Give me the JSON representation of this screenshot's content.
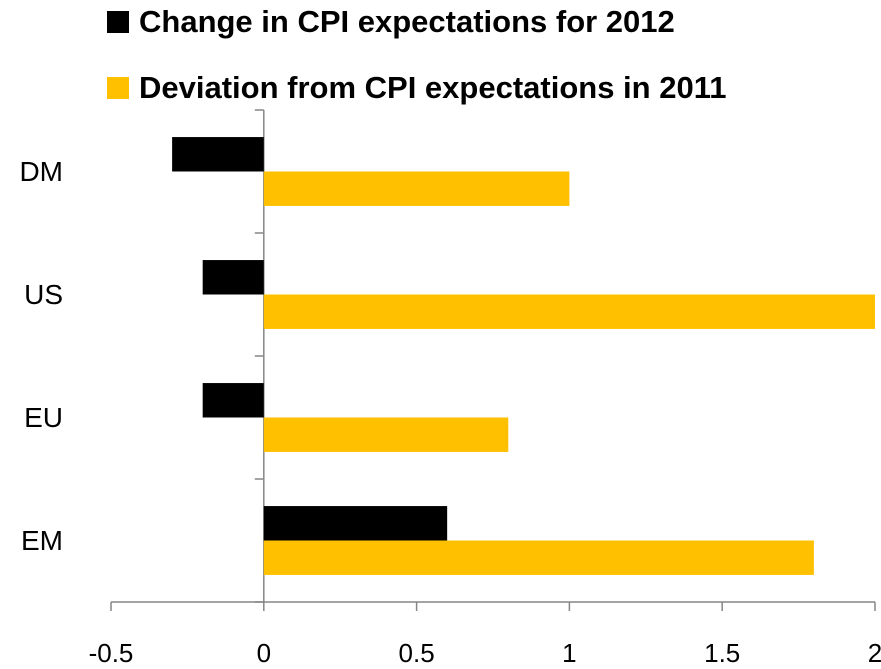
{
  "chart_data": {
    "type": "bar",
    "orientation": "horizontal",
    "categories": [
      "DM",
      "US",
      "EU",
      "EM"
    ],
    "series": [
      {
        "name": "Change in CPI expectations for 2012",
        "color": "#000000",
        "values": [
          -0.3,
          -0.2,
          -0.2,
          0.6
        ]
      },
      {
        "name": "Deviation from CPI expectations in 2011",
        "color": "#ffc000",
        "values": [
          1.0,
          2.0,
          0.8,
          1.8
        ]
      }
    ],
    "xlim": [
      -0.5,
      2
    ],
    "xticks": [
      -0.5,
      0,
      0.5,
      1,
      1.5,
      2
    ],
    "grid": false,
    "legend": "top"
  }
}
